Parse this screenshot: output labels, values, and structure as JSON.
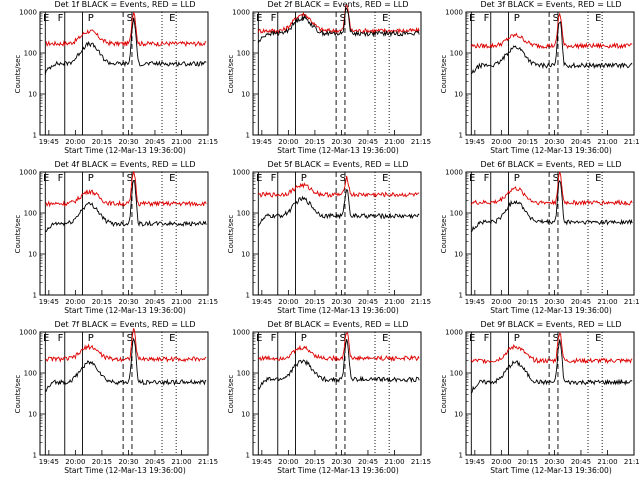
{
  "chart_data": [
    {
      "type": "line",
      "title": "Det 1f BLACK = Events, RED = LLD",
      "xlabel": "Start Time (12-Mar-13 19:36:00)",
      "ylabel": "Counts/sec",
      "xlim": [
        "19:40",
        "21:15"
      ],
      "ylim": [
        1,
        1000
      ],
      "yscale": "log",
      "xticks": [
        "19:45",
        "20:00",
        "20:15",
        "20:30",
        "20:45",
        "21:00",
        "21:15"
      ],
      "yticks": [
        "1",
        "10",
        "100",
        "1000"
      ],
      "markers": [
        "E",
        "F",
        "P",
        "S",
        "E"
      ],
      "series": [
        {
          "name": "LLD",
          "color": "#dd0000",
          "baseline": 170,
          "flare": 2.0,
          "peak": 6.0
        },
        {
          "name": "Events",
          "color": "#000000",
          "baseline": 55,
          "flare": 3.0,
          "peak": 12.0
        }
      ]
    },
    {
      "type": "line",
      "title": "Det 2f BLACK = Events, RED = LLD",
      "xlabel": "Start Time (12-Mar-13 19:36:00)",
      "ylabel": "Counts/sec",
      "xlim": [
        "19:40",
        "21:15"
      ],
      "ylim": [
        1,
        1000
      ],
      "yscale": "log",
      "xticks": [
        "19:45",
        "20:00",
        "20:15",
        "20:30",
        "20:45",
        "21:00",
        "21:15"
      ],
      "yticks": [
        "1",
        "10",
        "100",
        "1000"
      ],
      "markers": [
        "E",
        "F",
        "P",
        "S",
        "E"
      ],
      "series": [
        {
          "name": "LLD",
          "color": "#dd0000",
          "baseline": 350,
          "flare": 2.5,
          "peak": 4.5
        },
        {
          "name": "Events",
          "color": "#000000",
          "baseline": 300,
          "flare": 2.4,
          "peak": 4.5
        }
      ]
    },
    {
      "type": "line",
      "title": "Det 3f BLACK = Events, RED = LLD",
      "xlabel": "Start Time (12-Mar-13 19:36:00)",
      "ylabel": "Counts/sec",
      "xlim": [
        "19:40",
        "21:15"
      ],
      "ylim": [
        1,
        1000
      ],
      "yscale": "log",
      "xticks": [
        "19:45",
        "20:00",
        "20:15",
        "20:30",
        "20:45",
        "21:00",
        "21:15"
      ],
      "yticks": [
        "1",
        "10",
        "100",
        "1000"
      ],
      "markers": [
        "E",
        "F",
        "P",
        "S",
        "E"
      ],
      "series": [
        {
          "name": "LLD",
          "color": "#dd0000",
          "baseline": 150,
          "flare": 1.8,
          "peak": 6.0
        },
        {
          "name": "Events",
          "color": "#000000",
          "baseline": 50,
          "flare": 2.8,
          "peak": 12.0
        }
      ]
    },
    {
      "type": "line",
      "title": "Det 4f BLACK = Events, RED = LLD",
      "xlabel": "Start Time (12-Mar-13 19:36:00)",
      "ylabel": "Counts/sec",
      "xlim": [
        "19:40",
        "21:15"
      ],
      "ylim": [
        1,
        1000
      ],
      "yscale": "log",
      "xticks": [
        "19:45",
        "20:00",
        "20:15",
        "20:30",
        "20:45",
        "21:00",
        "21:15"
      ],
      "yticks": [
        "1",
        "10",
        "100",
        "1000"
      ],
      "markers": [
        "E",
        "F",
        "P",
        "S",
        "E"
      ],
      "series": [
        {
          "name": "LLD",
          "color": "#dd0000",
          "baseline": 170,
          "flare": 2.0,
          "peak": 6.0
        },
        {
          "name": "Events",
          "color": "#000000",
          "baseline": 55,
          "flare": 3.0,
          "peak": 12.0
        }
      ]
    },
    {
      "type": "line",
      "title": "Det 5f BLACK = Events, RED = LLD",
      "xlabel": "Start Time (12-Mar-13 19:36:00)",
      "ylabel": "Counts/sec",
      "xlim": [
        "19:40",
        "21:15"
      ],
      "ylim": [
        1,
        1000
      ],
      "yscale": "log",
      "xticks": [
        "19:45",
        "20:00",
        "20:15",
        "20:30",
        "20:45",
        "21:00",
        "21:15"
      ],
      "yticks": [
        "1",
        "10",
        "100",
        "1000"
      ],
      "markers": [
        "E",
        "F",
        "P",
        "S",
        "E"
      ],
      "series": [
        {
          "name": "LLD",
          "color": "#dd0000",
          "baseline": 280,
          "flare": 1.7,
          "peak": 2.7
        },
        {
          "name": "Events",
          "color": "#000000",
          "baseline": 85,
          "flare": 2.6,
          "peak": 4.5
        }
      ]
    },
    {
      "type": "line",
      "title": "Det 6f BLACK = Events, RED = LLD",
      "xlabel": "Start Time (12-Mar-13 19:36:00)",
      "ylabel": "Counts/sec",
      "xlim": [
        "19:40",
        "21:15"
      ],
      "ylim": [
        1,
        1000
      ],
      "yscale": "log",
      "xticks": [
        "19:45",
        "20:00",
        "20:15",
        "20:30",
        "20:45",
        "21:00",
        "21:15"
      ],
      "yticks": [
        "1",
        "10",
        "100",
        "1000"
      ],
      "markers": [
        "E",
        "F",
        "P",
        "S",
        "E"
      ],
      "series": [
        {
          "name": "LLD",
          "color": "#dd0000",
          "baseline": 180,
          "flare": 2.2,
          "peak": 5.0
        },
        {
          "name": "Events",
          "color": "#000000",
          "baseline": 60,
          "flare": 3.2,
          "peak": 10.0
        }
      ]
    },
    {
      "type": "line",
      "title": "Det 7f BLACK = Events, RED = LLD",
      "xlabel": "Start Time (12-Mar-13 19:36:00)",
      "ylabel": "Counts/sec",
      "xlim": [
        "19:40",
        "21:15"
      ],
      "ylim": [
        1,
        1000
      ],
      "yscale": "log",
      "xticks": [
        "19:45",
        "20:00",
        "20:15",
        "20:30",
        "20:45",
        "21:00",
        "21:15"
      ],
      "yticks": [
        "1",
        "10",
        "100",
        "1000"
      ],
      "markers": [
        "E",
        "F",
        "P",
        "S",
        "E"
      ],
      "series": [
        {
          "name": "LLD",
          "color": "#dd0000",
          "baseline": 220,
          "flare": 2.0,
          "peak": 5.0
        },
        {
          "name": "Events",
          "color": "#000000",
          "baseline": 60,
          "flare": 3.0,
          "peak": 11.0
        }
      ]
    },
    {
      "type": "line",
      "title": "Det 8f BLACK = Events, RED = LLD",
      "xlabel": "Start Time (12-Mar-13 19:36:00)",
      "ylabel": "Counts/sec",
      "xlim": [
        "19:40",
        "21:15"
      ],
      "ylim": [
        1,
        1000
      ],
      "yscale": "log",
      "xticks": [
        "19:45",
        "20:00",
        "20:15",
        "20:30",
        "20:45",
        "21:00",
        "21:15"
      ],
      "yticks": [
        "1",
        "10",
        "100",
        "1000"
      ],
      "markers": [
        "E",
        "F",
        "P",
        "S",
        "E"
      ],
      "series": [
        {
          "name": "LLD",
          "color": "#dd0000",
          "baseline": 230,
          "flare": 1.8,
          "peak": 4.5
        },
        {
          "name": "Events",
          "color": "#000000",
          "baseline": 70,
          "flare": 2.8,
          "peak": 9.0
        }
      ]
    },
    {
      "type": "line",
      "title": "Det 9f BLACK = Events, RED = LLD",
      "xlabel": "Start Time (12-Mar-13 19:36:00)",
      "ylabel": "Counts/sec",
      "xlim": [
        "19:40",
        "21:15"
      ],
      "ylim": [
        1,
        1000
      ],
      "yscale": "log",
      "xticks": [
        "19:45",
        "20:00",
        "20:15",
        "20:30",
        "20:45",
        "21:00",
        "21:15"
      ],
      "yticks": [
        "1",
        "10",
        "100",
        "1000"
      ],
      "markers": [
        "E",
        "F",
        "P",
        "S",
        "E"
      ],
      "series": [
        {
          "name": "LLD",
          "color": "#dd0000",
          "baseline": 200,
          "flare": 2.2,
          "peak": 5.0
        },
        {
          "name": "Events",
          "color": "#000000",
          "baseline": 60,
          "flare": 3.0,
          "peak": 10.0
        }
      ]
    }
  ]
}
